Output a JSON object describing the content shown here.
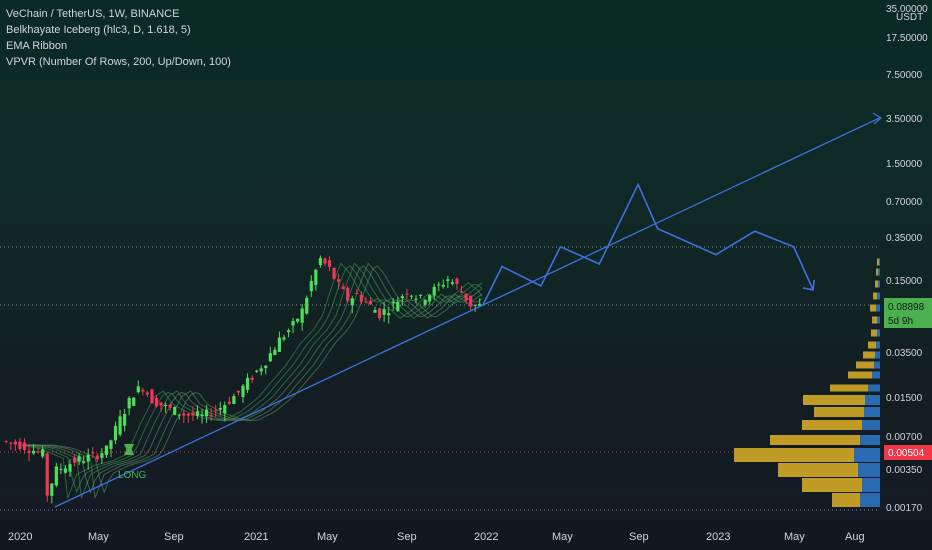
{
  "legend": {
    "symbol": "VeChain / TetherUS, 1W, BINANCE",
    "indicators": [
      "Belkhayate Iceberg (hlc3, D, 1.618, 5)",
      "EMA Ribbon",
      "VPVR (Number Of Rows, 200, Up/Down, 100)"
    ]
  },
  "price_axis": {
    "currency": "USDT",
    "ticks": [
      "35.00000",
      "17.50000",
      "7.50000",
      "3.50000",
      "1.50000",
      "0.70000",
      "0.35000",
      "0.15000",
      "0.08898",
      "0.03500",
      "0.01500",
      "0.00700",
      "0.00504",
      "0.00350",
      "0.00170"
    ]
  },
  "time_axis": {
    "ticks": [
      "2020",
      "May",
      "Sep",
      "2021",
      "May",
      "Sep",
      "2022",
      "May",
      "Sep",
      "2023",
      "May",
      "Aug"
    ]
  },
  "current_price": {
    "value": "0.08898",
    "countdown": "5d 9h",
    "color": "#4caf50"
  },
  "marked_price": {
    "value": "0.00504",
    "color": "#f23645"
  },
  "annotation": {
    "text": "LONG",
    "color": "#4caf50"
  },
  "colors": {
    "up": "#4cdf5a",
    "down": "#f23657",
    "trendline": "#3d6fe0",
    "vpvr_up": "#2a6fb8",
    "vpvr_down": "#c9a227"
  },
  "chart_data": {
    "type": "candlestick",
    "title": "VeChain / TetherUS, 1W, BINANCE",
    "y_scale": "log",
    "projection_path": [
      {
        "t": "2022-01",
        "p": 0.088
      },
      {
        "t": "2022-02",
        "p": 0.19
      },
      {
        "t": "2022-04",
        "p": 0.13
      },
      {
        "t": "2022-05",
        "p": 0.28
      },
      {
        "t": "2022-07",
        "p": 0.2
      },
      {
        "t": "2022-09",
        "p": 0.95
      },
      {
        "t": "2022-10",
        "p": 0.4
      },
      {
        "t": "2023-01",
        "p": 0.24
      },
      {
        "t": "2023-03",
        "p": 0.38
      },
      {
        "t": "2023-05",
        "p": 0.28
      },
      {
        "t": "2023-06",
        "p": 0.12
      }
    ],
    "trendline": [
      {
        "t": "2020-03",
        "p": 0.0017
      },
      {
        "t": "2023-09",
        "p": 3.5
      }
    ]
  }
}
